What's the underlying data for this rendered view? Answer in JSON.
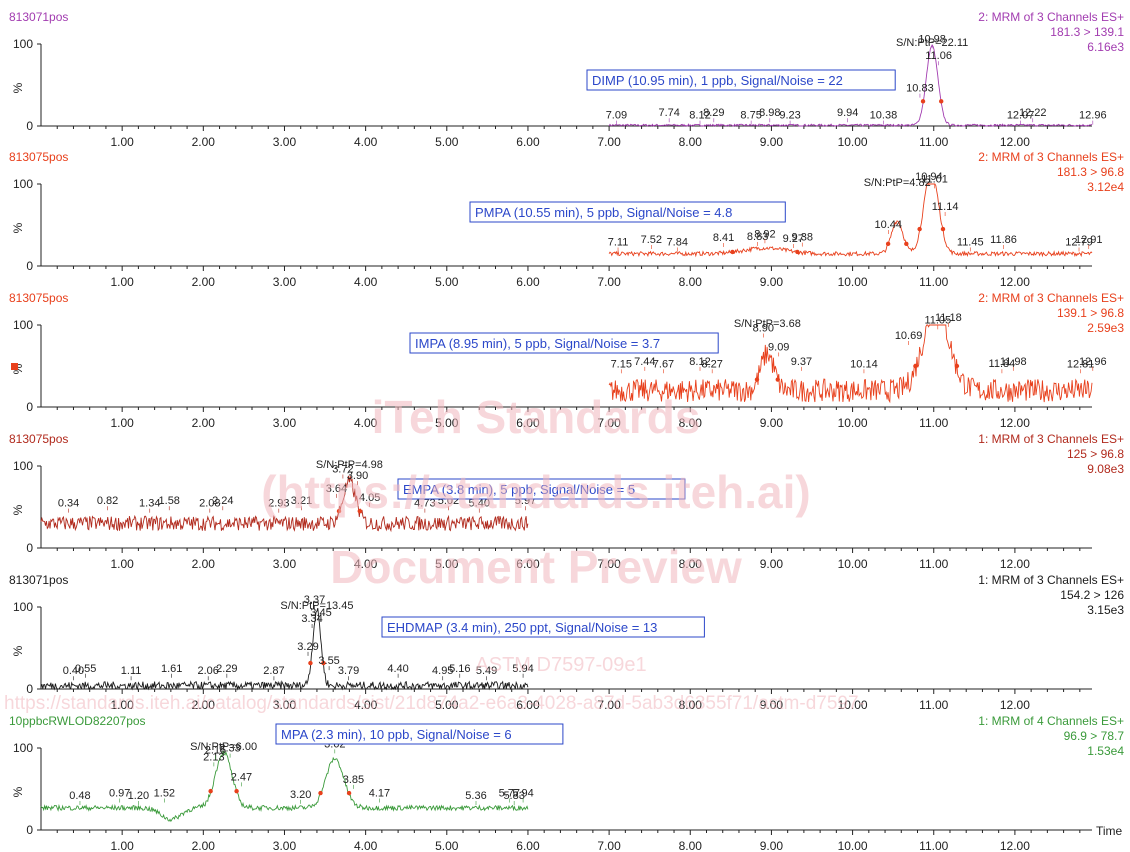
{
  "watermark": {
    "line1": "iTeh Standards",
    "line2": "(https://standards.iteh.ai)",
    "line3": "Document Preview",
    "designation": "ASTM D7597-09e1",
    "url": "https://standards.iteh.ai/catalog/standards/sist/21d874a2-e6a3-4028-a87d-5ab3d6355f71/astm-d7597-"
  },
  "x_axis_label": "Time",
  "colors": {
    "purple": "#a23cb0",
    "red": "#e8401c",
    "darkred": "#b12a1d",
    "black": "#1a1a1a",
    "green": "#3a9a3a",
    "blue_annotation": "#2b47c9",
    "watermark": "#f1b8be"
  },
  "chart_data": [
    {
      "type": "line",
      "sample": "813071pos",
      "channel": "2: MRM of 3 Channels ES+",
      "transition": "181.3 > 139.1",
      "intensity": "6.16e3",
      "annotation": "DIMP (10.95 min), 1 ppb, Signal/Noise = 22",
      "sn_label": "S/N:PtP=22.11",
      "color": "#a23cb0",
      "xlim": [
        0,
        12.95
      ],
      "ylim": [
        0,
        100
      ],
      "x_ticks": [
        "1.00",
        "2.00",
        "3.00",
        "4.00",
        "5.00",
        "6.00",
        "7.00",
        "8.00",
        "9.00",
        "10.00",
        "11.00",
        "12.00"
      ],
      "y_ticks": [
        "0",
        "100"
      ],
      "ylabel": "%",
      "trace_range": [
        7.0,
        12.95
      ],
      "baseline": 1,
      "noise": 1.2,
      "peaks": [
        {
          "rt": 10.98,
          "height": 97,
          "width": 0.07
        }
      ],
      "peak_labels": [
        {
          "rt": 7.09,
          "label": "7.09"
        },
        {
          "rt": 7.74,
          "label": "7.74"
        },
        {
          "rt": 8.12,
          "label": "8.12"
        },
        {
          "rt": 8.29,
          "label": "8.29"
        },
        {
          "rt": 8.75,
          "label": "8.75"
        },
        {
          "rt": 8.98,
          "label": "8.98"
        },
        {
          "rt": 9.23,
          "label": "9.23"
        },
        {
          "rt": 9.94,
          "label": "9.94"
        },
        {
          "rt": 10.38,
          "label": "10.38"
        },
        {
          "rt": 10.83,
          "label": "10.83"
        },
        {
          "rt": 10.98,
          "label": "10.98"
        },
        {
          "rt": 11.06,
          "label": "11.06"
        },
        {
          "rt": 12.07,
          "label": "12.07"
        },
        {
          "rt": 12.22,
          "label": "12.22"
        },
        {
          "rt": 12.96,
          "label": "12.96"
        }
      ]
    },
    {
      "type": "line",
      "sample": "813075pos",
      "channel": "2: MRM of 3 Channels ES+",
      "transition": "181.3 > 96.8",
      "intensity": "3.12e4",
      "annotation": "PMPA (10.55 min), 5 ppb, Signal/Noise = 4.8",
      "sn_label": "S/N:PtP=4.82",
      "color": "#e8401c",
      "xlim": [
        0,
        12.95
      ],
      "ylim": [
        0,
        100
      ],
      "x_ticks": [
        "1.00",
        "2.00",
        "3.00",
        "4.00",
        "5.00",
        "6.00",
        "7.00",
        "8.00",
        "9.00",
        "10.00",
        "11.00",
        "12.00"
      ],
      "y_ticks": [
        "0",
        "100"
      ],
      "ylabel": "%",
      "trace_range": [
        7.0,
        12.95
      ],
      "baseline": 15,
      "noise": 2.5,
      "peaks": [
        {
          "rt": 8.92,
          "height": 7,
          "width": 0.25
        },
        {
          "rt": 10.55,
          "height": 40,
          "width": 0.07
        },
        {
          "rt": 10.97,
          "height": 100,
          "width": 0.09
        }
      ],
      "peak_labels": [
        {
          "rt": 7.11,
          "label": "7.11"
        },
        {
          "rt": 7.52,
          "label": "7.52"
        },
        {
          "rt": 7.84,
          "label": "7.84"
        },
        {
          "rt": 8.41,
          "label": "8.41"
        },
        {
          "rt": 8.83,
          "label": "8.83"
        },
        {
          "rt": 8.92,
          "label": "8.92"
        },
        {
          "rt": 9.27,
          "label": "9.27"
        },
        {
          "rt": 9.38,
          "label": "9.38"
        },
        {
          "rt": 10.44,
          "label": "10.44"
        },
        {
          "rt": 10.94,
          "label": "10.94"
        },
        {
          "rt": 11.01,
          "label": "11.01"
        },
        {
          "rt": 11.14,
          "label": "11.14"
        },
        {
          "rt": 11.45,
          "label": "11.45"
        },
        {
          "rt": 11.86,
          "label": "11.86"
        },
        {
          "rt": 12.79,
          "label": "12.79"
        },
        {
          "rt": 12.91,
          "label": "12.91"
        }
      ]
    },
    {
      "type": "line",
      "sample": "813075pos",
      "channel": "2: MRM of 3 Channels ES+",
      "transition": "139.1 > 96.8",
      "intensity": "2.59e3",
      "annotation": "IMPA (8.95 min), 5 ppb, Signal/Noise = 3.7",
      "sn_label": "S/N:PtP=3.68",
      "color": "#e8401c",
      "xlim": [
        0,
        12.95
      ],
      "ylim": [
        0,
        100
      ],
      "x_ticks": [
        "1.00",
        "2.00",
        "3.00",
        "4.00",
        "5.00",
        "6.00",
        "7.00",
        "8.00",
        "9.00",
        "10.00",
        "11.00",
        "12.00"
      ],
      "y_ticks": [
        "0",
        "100"
      ],
      "ylabel": "%",
      "trace_range": [
        7.0,
        12.95
      ],
      "baseline": 20,
      "noise": 14,
      "peaks": [
        {
          "rt": 8.95,
          "height": 45,
          "width": 0.08
        },
        {
          "rt": 11.03,
          "height": 100,
          "width": 0.16
        }
      ],
      "peak_labels": [
        {
          "rt": 7.15,
          "label": "7.15"
        },
        {
          "rt": 7.44,
          "label": "7.44"
        },
        {
          "rt": 7.67,
          "label": "7.67"
        },
        {
          "rt": 8.12,
          "label": "8.12"
        },
        {
          "rt": 8.27,
          "label": "8.27"
        },
        {
          "rt": 8.9,
          "label": "8.90"
        },
        {
          "rt": 9.09,
          "label": "9.09"
        },
        {
          "rt": 9.37,
          "label": "9.37"
        },
        {
          "rt": 10.14,
          "label": "10.14"
        },
        {
          "rt": 10.69,
          "label": "10.69"
        },
        {
          "rt": 11.05,
          "label": "11.05"
        },
        {
          "rt": 11.18,
          "label": "11.18"
        },
        {
          "rt": 11.84,
          "label": "11.84"
        },
        {
          "rt": 11.98,
          "label": "11.98"
        },
        {
          "rt": 12.81,
          "label": "12.81"
        },
        {
          "rt": 12.96,
          "label": "12.96"
        }
      ]
    },
    {
      "type": "line",
      "sample": "813075pos",
      "channel": "1: MRM of 3 Channels ES+",
      "transition": "125 > 96.8",
      "intensity": "9.08e3",
      "annotation": "EMPA (3.8 min), 5 ppb, Signal/Noise = 5",
      "sn_label": "S/N:PtP=4.98",
      "color": "#b12a1d",
      "xlim": [
        0,
        12.95
      ],
      "ylim": [
        0,
        100
      ],
      "x_ticks": [
        "1.00",
        "2.00",
        "3.00",
        "4.00",
        "5.00",
        "6.00",
        "7.00",
        "8.00",
        "9.00",
        "10.00",
        "11.00",
        "12.00"
      ],
      "y_ticks": [
        "0",
        "100"
      ],
      "ylabel": "%",
      "trace_range": [
        0.0,
        6.0
      ],
      "baseline": 30,
      "noise": 9,
      "peaks": [
        {
          "rt": 3.8,
          "height": 50,
          "width": 0.08
        }
      ],
      "peak_labels": [
        {
          "rt": 0.34,
          "label": "0.34"
        },
        {
          "rt": 0.82,
          "label": "0.82"
        },
        {
          "rt": 1.34,
          "label": "1.34"
        },
        {
          "rt": 1.58,
          "label": "1.58"
        },
        {
          "rt": 2.08,
          "label": "2.08"
        },
        {
          "rt": 2.24,
          "label": "2.24"
        },
        {
          "rt": 2.93,
          "label": "2.93"
        },
        {
          "rt": 3.21,
          "label": "3.21"
        },
        {
          "rt": 3.64,
          "label": "3.64"
        },
        {
          "rt": 3.72,
          "label": "3.72"
        },
        {
          "rt": 3.9,
          "label": "3.90"
        },
        {
          "rt": 4.05,
          "label": "4.05"
        },
        {
          "rt": 4.73,
          "label": "4.73"
        },
        {
          "rt": 5.02,
          "label": "5.02"
        },
        {
          "rt": 5.4,
          "label": "5.40"
        },
        {
          "rt": 5.97,
          "label": "5.97"
        }
      ]
    },
    {
      "type": "line",
      "sample": "813071pos",
      "channel": "1: MRM of 3 Channels ES+",
      "transition": "154.2 > 126",
      "intensity": "3.15e3",
      "annotation": "EHDMAP (3.4 min), 250 ppt, Signal/Noise = 13",
      "sn_label": "S/N:PtP=13.45",
      "color": "#1a1a1a",
      "xlim": [
        0,
        12.95
      ],
      "ylim": [
        0,
        100
      ],
      "x_ticks": [
        "1.00",
        "2.00",
        "3.00",
        "4.00",
        "5.00",
        "6.00",
        "7.00",
        "8.00",
        "9.00",
        "10.00",
        "11.00",
        "12.00"
      ],
      "y_ticks": [
        "0",
        "100"
      ],
      "ylabel": "%",
      "trace_range": [
        0.0,
        6.0
      ],
      "baseline": 4,
      "noise": 5,
      "peaks": [
        {
          "rt": 3.4,
          "height": 92,
          "width": 0.05
        }
      ],
      "peak_labels": [
        {
          "rt": 0.4,
          "label": "0.40"
        },
        {
          "rt": 0.55,
          "label": "0.55"
        },
        {
          "rt": 1.11,
          "label": "1.11"
        },
        {
          "rt": 1.61,
          "label": "1.61"
        },
        {
          "rt": 2.06,
          "label": "2.06"
        },
        {
          "rt": 2.29,
          "label": "2.29"
        },
        {
          "rt": 2.87,
          "label": "2.87"
        },
        {
          "rt": 3.29,
          "label": "3.29"
        },
        {
          "rt": 3.34,
          "label": "3.34"
        },
        {
          "rt": 3.37,
          "label": "3.37"
        },
        {
          "rt": 3.45,
          "label": "3.45"
        },
        {
          "rt": 3.55,
          "label": "3.55"
        },
        {
          "rt": 3.79,
          "label": "3.79"
        },
        {
          "rt": 4.4,
          "label": "4.40"
        },
        {
          "rt": 4.95,
          "label": "4.95"
        },
        {
          "rt": 5.16,
          "label": "5.16"
        },
        {
          "rt": 5.49,
          "label": "5.49"
        },
        {
          "rt": 5.94,
          "label": "5.94"
        }
      ]
    },
    {
      "type": "line",
      "sample": "10ppbcRWLOD82207pos",
      "channel": "1: MRM of 4 Channels ES+",
      "transition": "96.9 > 78.7",
      "intensity": "1.53e4",
      "annotation": "MPA (2.3 min), 10 ppb, Signal/Noise = 6",
      "sn_label": "S/N:PtP=6.00",
      "color": "#3a9a3a",
      "xlim": [
        0,
        12.95
      ],
      "ylim": [
        0,
        100
      ],
      "x_ticks": [
        "1.00",
        "2.00",
        "3.00",
        "4.00",
        "5.00",
        "6.00",
        "7.00",
        "8.00",
        "9.00",
        "10.00",
        "11.00",
        "12.00"
      ],
      "y_ticks": [
        "0",
        "100"
      ],
      "ylabel": "%",
      "trace_range": [
        0.0,
        6.0
      ],
      "baseline": 27,
      "noise": 3,
      "dips": [
        {
          "rt": 1.6,
          "depth": 14,
          "width": 0.12
        }
      ],
      "peaks": [
        {
          "rt": 2.25,
          "height": 68,
          "width": 0.1
        },
        {
          "rt": 3.62,
          "height": 60,
          "width": 0.11
        }
      ],
      "peak_labels": [
        {
          "rt": 0.48,
          "label": "0.48"
        },
        {
          "rt": 0.97,
          "label": "0.97"
        },
        {
          "rt": 1.2,
          "label": "1.20"
        },
        {
          "rt": 1.52,
          "label": "1.52"
        },
        {
          "rt": 2.13,
          "label": "2.13"
        },
        {
          "rt": 2.15,
          "label": "2.15"
        },
        {
          "rt": 2.33,
          "label": "2.33"
        },
        {
          "rt": 2.47,
          "label": "2.47"
        },
        {
          "rt": 3.2,
          "label": "3.20"
        },
        {
          "rt": 3.62,
          "label": "3.62"
        },
        {
          "rt": 3.85,
          "label": "3.85"
        },
        {
          "rt": 4.17,
          "label": "4.17"
        },
        {
          "rt": 5.36,
          "label": "5.36"
        },
        {
          "rt": 5.77,
          "label": "5.77"
        },
        {
          "rt": 5.83,
          "label": "5.83"
        },
        {
          "rt": 5.94,
          "label": "5.94"
        }
      ]
    }
  ]
}
